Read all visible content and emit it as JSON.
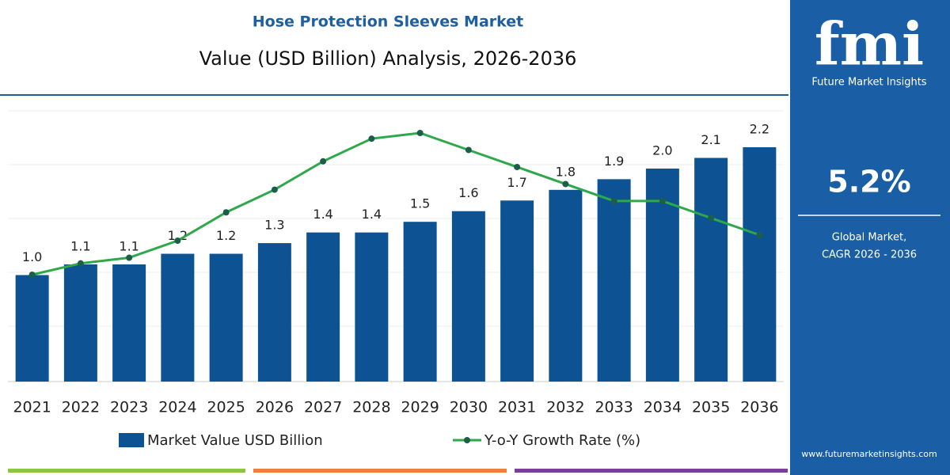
{
  "chart_data": {
    "type": "bar_line",
    "title": "Hose Protection Sleeves Market",
    "subtitle": "Value (USD Billion) Analysis, 2026-2036",
    "categories": [
      "2021",
      "2022",
      "2023",
      "2024",
      "2025",
      "2026",
      "2027",
      "2028",
      "2029",
      "2030",
      "2031",
      "2032",
      "2033",
      "2034",
      "2035",
      "2036"
    ],
    "series": [
      {
        "name": "Market Value USD Billion",
        "color": "#0d5394",
        "kind": "bar",
        "values": [
          1.0,
          1.1,
          1.1,
          1.2,
          1.2,
          1.3,
          1.4,
          1.4,
          1.5,
          1.6,
          1.7,
          1.8,
          1.9,
          2.0,
          2.1,
          2.2
        ],
        "value_labels": [
          "1.0",
          "1.1",
          "1.1",
          "1.2",
          "1.2",
          "1.3",
          "1.4",
          "1.4",
          "1.5",
          "1.6",
          "1.7",
          "1.8",
          "1.9",
          "2.0",
          "2.1",
          "2.2"
        ]
      },
      {
        "name": "Y-o-Y Growth Rate (%)",
        "color": "#2ea84a",
        "kind": "line",
        "values": [
          4.0,
          4.2,
          4.3,
          4.6,
          5.1,
          5.5,
          6.0,
          6.4,
          6.5,
          6.2,
          5.9,
          5.6,
          5.3,
          5.3,
          5.0,
          4.7
        ]
      }
    ]
  },
  "sidebar": {
    "logo": "fmi",
    "brand": "Future Market Insights",
    "cagr": "5.2%",
    "caption_1": "Global Market,",
    "caption_2": "CAGR 2026 - 2036",
    "url": "www.futuremarketinsights.com"
  }
}
